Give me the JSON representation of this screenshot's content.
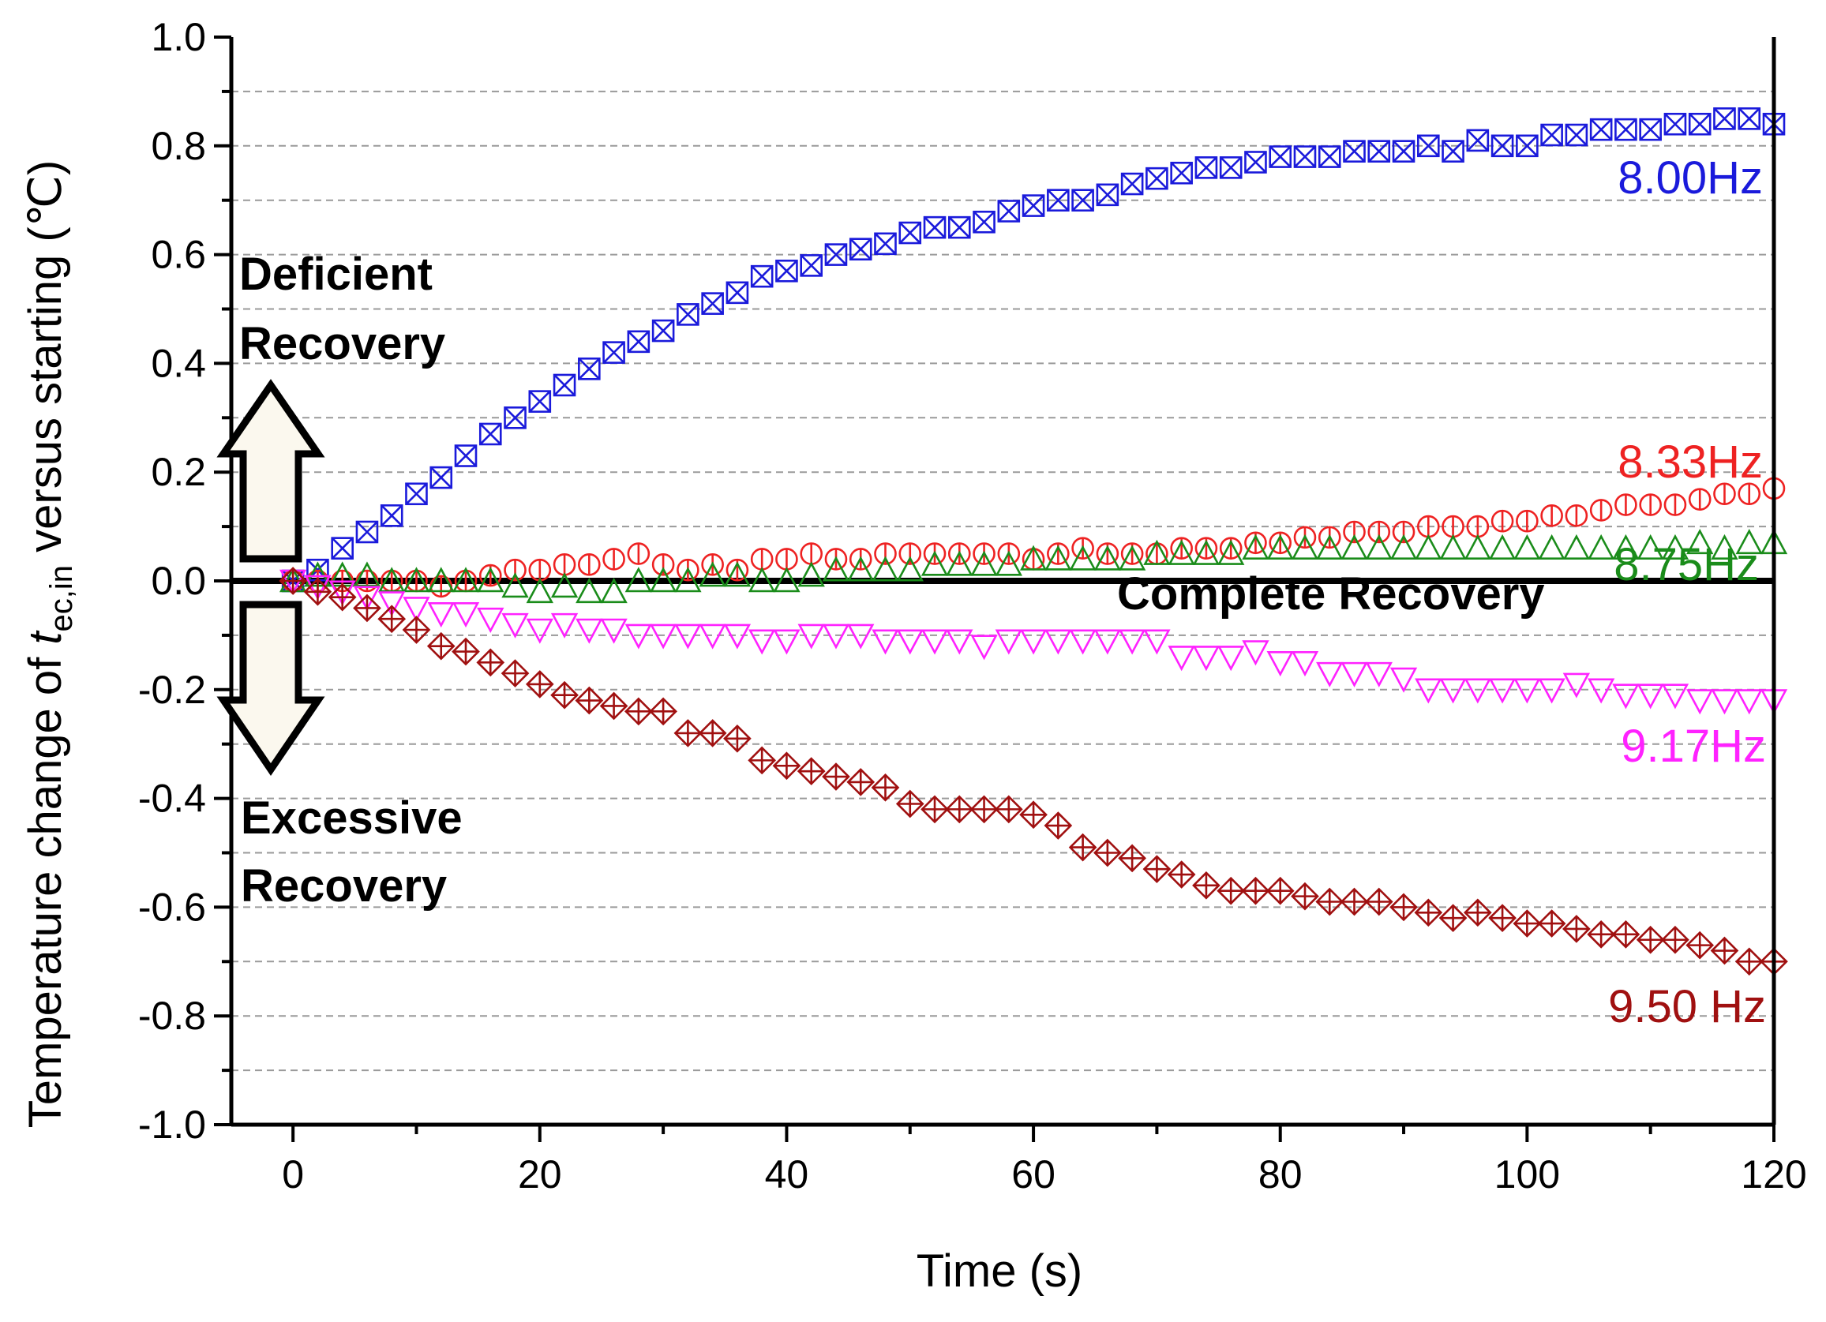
{
  "chart_data": {
    "type": "scatter",
    "title": "",
    "xlabel": "Time (s)",
    "ylabel": {
      "main": "Temperature change of ",
      "var": "t",
      "sub": "ec,in",
      "rest": " versus starting (℃)"
    },
    "xlim": [
      -5,
      120
    ],
    "ylim": [
      -1.0,
      1.0
    ],
    "x_ticks": [
      "0",
      "20",
      "40",
      "60",
      "80",
      "100",
      "120"
    ],
    "x_tick_values": [
      0,
      20,
      40,
      60,
      80,
      100,
      120
    ],
    "y_ticks": [
      "1.0",
      "0.8",
      "0.6",
      "0.4",
      "0.2",
      "0.0",
      "-0.2",
      "-0.4",
      "-0.6",
      "-0.8",
      "-1.0"
    ],
    "y_tick_values": [
      1.0,
      0.8,
      0.6,
      0.4,
      0.2,
      0.0,
      -0.2,
      -0.4,
      -0.6,
      -0.8,
      -1.0
    ],
    "grid": "dashed horizontal at 0.1 intervals",
    "reference_line": {
      "y": 0,
      "label": "Complete Recovery"
    },
    "annotations": {
      "deficient_line1": "Deficient",
      "deficient_line2": "Recovery",
      "excessive_line1": "Excessive",
      "excessive_line2": "Recovery"
    },
    "series": [
      {
        "name": "8.00Hz",
        "color": "#1a1adb",
        "marker": "square-x",
        "x": [
          0,
          2,
          4,
          6,
          8,
          10,
          12,
          14,
          16,
          18,
          20,
          22,
          24,
          26,
          28,
          30,
          32,
          34,
          36,
          38,
          40,
          42,
          44,
          46,
          48,
          50,
          52,
          54,
          56,
          58,
          60,
          62,
          64,
          66,
          68,
          70,
          72,
          74,
          76,
          78,
          80,
          82,
          84,
          86,
          88,
          90,
          92,
          94,
          96,
          98,
          100,
          102,
          104,
          106,
          108,
          110,
          112,
          114,
          116,
          118,
          120
        ],
        "y": [
          0.0,
          0.02,
          0.06,
          0.09,
          0.12,
          0.16,
          0.19,
          0.23,
          0.27,
          0.3,
          0.33,
          0.36,
          0.39,
          0.42,
          0.44,
          0.46,
          0.49,
          0.51,
          0.53,
          0.56,
          0.57,
          0.58,
          0.6,
          0.61,
          0.62,
          0.64,
          0.65,
          0.65,
          0.66,
          0.68,
          0.69,
          0.7,
          0.7,
          0.71,
          0.73,
          0.74,
          0.75,
          0.76,
          0.76,
          0.77,
          0.78,
          0.78,
          0.78,
          0.79,
          0.79,
          0.79,
          0.8,
          0.79,
          0.81,
          0.8,
          0.8,
          0.82,
          0.82,
          0.83,
          0.83,
          0.83,
          0.84,
          0.84,
          0.85,
          0.85,
          0.84
        ]
      },
      {
        "name": "8.33Hz",
        "color": "#ee2222",
        "marker": "circle-bar",
        "x": [
          0,
          2,
          4,
          6,
          8,
          10,
          12,
          14,
          16,
          18,
          20,
          22,
          24,
          26,
          28,
          30,
          32,
          34,
          36,
          38,
          40,
          42,
          44,
          46,
          48,
          50,
          52,
          54,
          56,
          58,
          60,
          62,
          64,
          66,
          68,
          70,
          72,
          74,
          76,
          78,
          80,
          82,
          84,
          86,
          88,
          90,
          92,
          94,
          96,
          98,
          100,
          102,
          104,
          106,
          108,
          110,
          112,
          114,
          116,
          118,
          120
        ],
        "y": [
          0.0,
          0.0,
          0.0,
          0.0,
          0.0,
          0.0,
          -0.01,
          0.0,
          0.01,
          0.02,
          0.02,
          0.03,
          0.03,
          0.04,
          0.05,
          0.03,
          0.02,
          0.03,
          0.02,
          0.04,
          0.04,
          0.05,
          0.04,
          0.04,
          0.05,
          0.05,
          0.05,
          0.05,
          0.05,
          0.05,
          0.04,
          0.05,
          0.06,
          0.05,
          0.05,
          0.05,
          0.06,
          0.06,
          0.06,
          0.07,
          0.07,
          0.08,
          0.08,
          0.09,
          0.09,
          0.09,
          0.1,
          0.1,
          0.1,
          0.11,
          0.11,
          0.12,
          0.12,
          0.13,
          0.14,
          0.14,
          0.14,
          0.15,
          0.16,
          0.16,
          0.17
        ]
      },
      {
        "name": "8.75Hz",
        "color": "#1a8c1a",
        "marker": "triangle-up",
        "x": [
          0,
          2,
          4,
          6,
          8,
          10,
          12,
          14,
          16,
          18,
          20,
          22,
          24,
          26,
          28,
          30,
          32,
          34,
          36,
          38,
          40,
          42,
          44,
          46,
          48,
          50,
          52,
          54,
          56,
          58,
          60,
          62,
          64,
          66,
          68,
          70,
          72,
          74,
          76,
          78,
          80,
          82,
          84,
          86,
          88,
          90,
          92,
          94,
          96,
          98,
          100,
          102,
          104,
          106,
          108,
          110,
          112,
          114,
          116,
          118,
          120
        ],
        "y": [
          0.0,
          0.01,
          0.01,
          0.01,
          0.0,
          0.0,
          0.0,
          0.0,
          0.0,
          -0.01,
          -0.02,
          -0.01,
          -0.02,
          -0.02,
          0.0,
          0.0,
          0.0,
          0.01,
          0.01,
          0.0,
          0.0,
          0.01,
          0.02,
          0.02,
          0.02,
          0.02,
          0.03,
          0.03,
          0.03,
          0.03,
          0.04,
          0.04,
          0.04,
          0.04,
          0.04,
          0.05,
          0.05,
          0.05,
          0.05,
          0.06,
          0.06,
          0.06,
          0.06,
          0.06,
          0.06,
          0.06,
          0.06,
          0.06,
          0.06,
          0.06,
          0.06,
          0.06,
          0.06,
          0.06,
          0.06,
          0.06,
          0.06,
          0.07,
          0.06,
          0.07,
          0.07
        ]
      },
      {
        "name": "9.17Hz",
        "color": "#ff22ff",
        "marker": "triangle-down",
        "x": [
          0,
          2,
          4,
          6,
          8,
          10,
          12,
          14,
          16,
          18,
          20,
          22,
          24,
          26,
          28,
          30,
          32,
          34,
          36,
          38,
          40,
          42,
          44,
          46,
          48,
          50,
          52,
          54,
          56,
          58,
          60,
          62,
          64,
          66,
          68,
          70,
          72,
          74,
          76,
          78,
          80,
          82,
          84,
          86,
          88,
          90,
          92,
          94,
          96,
          98,
          100,
          102,
          104,
          106,
          108,
          110,
          112,
          114,
          116,
          118,
          120
        ],
        "y": [
          0.0,
          -0.01,
          -0.02,
          -0.03,
          -0.04,
          -0.05,
          -0.06,
          -0.06,
          -0.07,
          -0.08,
          -0.09,
          -0.08,
          -0.09,
          -0.09,
          -0.1,
          -0.1,
          -0.1,
          -0.1,
          -0.1,
          -0.11,
          -0.11,
          -0.1,
          -0.1,
          -0.1,
          -0.11,
          -0.11,
          -0.11,
          -0.11,
          -0.12,
          -0.11,
          -0.11,
          -0.11,
          -0.11,
          -0.11,
          -0.11,
          -0.11,
          -0.14,
          -0.14,
          -0.14,
          -0.13,
          -0.15,
          -0.15,
          -0.17,
          -0.17,
          -0.17,
          -0.18,
          -0.2,
          -0.2,
          -0.2,
          -0.2,
          -0.2,
          -0.2,
          -0.19,
          -0.2,
          -0.21,
          -0.21,
          -0.21,
          -0.22,
          -0.22,
          -0.22,
          -0.22
        ]
      },
      {
        "name": "9.50 Hz",
        "color": "#a01010",
        "marker": "diamond-plus",
        "x": [
          0,
          2,
          4,
          6,
          8,
          10,
          12,
          14,
          16,
          18,
          20,
          22,
          24,
          26,
          28,
          30,
          32,
          34,
          36,
          38,
          40,
          42,
          44,
          46,
          48,
          50,
          52,
          54,
          56,
          58,
          60,
          62,
          64,
          66,
          68,
          70,
          72,
          74,
          76,
          78,
          80,
          82,
          84,
          86,
          88,
          90,
          92,
          94,
          96,
          98,
          100,
          102,
          104,
          106,
          108,
          110,
          112,
          114,
          116,
          118,
          120
        ],
        "y": [
          0.0,
          -0.02,
          -0.03,
          -0.05,
          -0.07,
          -0.09,
          -0.12,
          -0.13,
          -0.15,
          -0.17,
          -0.19,
          -0.21,
          -0.22,
          -0.23,
          -0.24,
          -0.24,
          -0.28,
          -0.28,
          -0.29,
          -0.33,
          -0.34,
          -0.35,
          -0.36,
          -0.37,
          -0.38,
          -0.41,
          -0.42,
          -0.42,
          -0.42,
          -0.42,
          -0.43,
          -0.45,
          -0.49,
          -0.5,
          -0.51,
          -0.53,
          -0.54,
          -0.56,
          -0.57,
          -0.57,
          -0.57,
          -0.58,
          -0.59,
          -0.59,
          -0.59,
          -0.6,
          -0.61,
          -0.62,
          -0.61,
          -0.62,
          -0.63,
          -0.63,
          -0.64,
          -0.65,
          -0.65,
          -0.66,
          -0.66,
          -0.67,
          -0.68,
          -0.7,
          -0.7
        ]
      }
    ]
  }
}
